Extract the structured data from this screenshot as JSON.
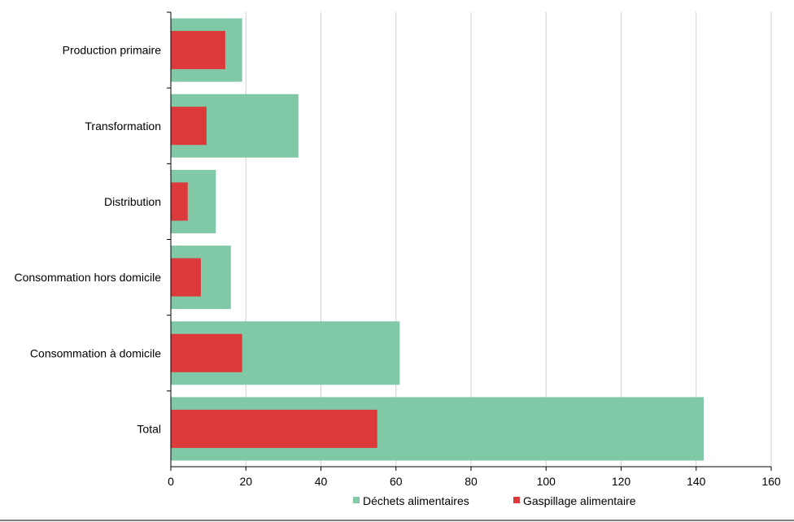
{
  "chart_data": {
    "type": "bar",
    "orientation": "horizontal",
    "title": "",
    "xlabel": "",
    "ylabel": "",
    "xlim": [
      0,
      160
    ],
    "xticks": [
      0,
      20,
      40,
      60,
      80,
      100,
      120,
      140,
      160
    ],
    "grid": true,
    "legend_position": "bottom",
    "categories": [
      "Production primaire",
      "Transformation",
      "Distribution",
      "Consommation hors domicile",
      "Consommation à domicile",
      "Total"
    ],
    "series": [
      {
        "name": "Déchets alimentaires",
        "color": "#80c8a6",
        "values": [
          19,
          34,
          12,
          16,
          61,
          142
        ]
      },
      {
        "name": "Gaspillage alimentaire",
        "color": "#dc3a3a",
        "values": [
          14.5,
          9.5,
          4.5,
          8,
          19,
          55
        ]
      }
    ]
  }
}
